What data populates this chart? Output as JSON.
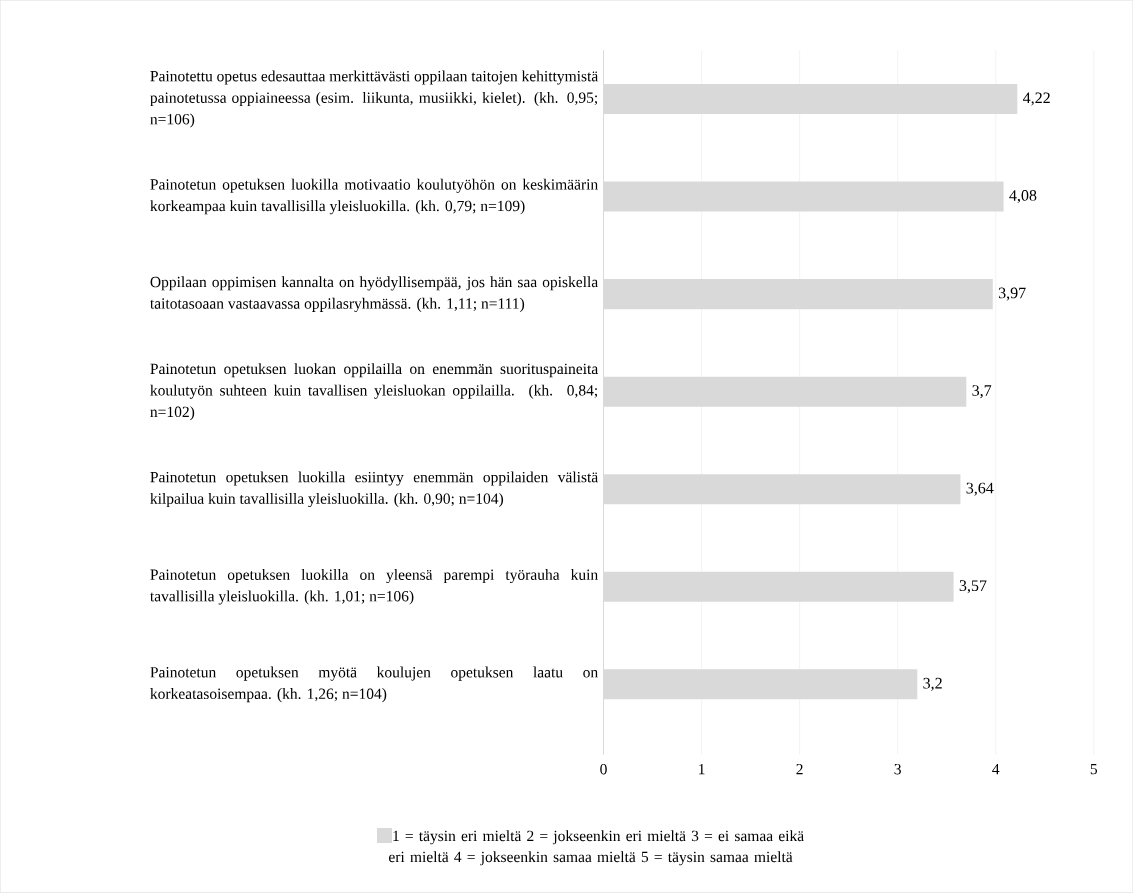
{
  "chart_data": {
    "type": "bar",
    "orientation": "horizontal",
    "categories": [
      "Painotettu opetus edesauttaa merkittävästi oppilaan taitojen kehittymistä painotetussa oppiaineessa (esim. liikunta, musiikki, kielet). (kh. 0,95; n=106)",
      "Painotetun opetuksen luokilla motivaatio koulutyöhön on keskimäärin korkeampaa kuin tavallisilla yleisluokilla. (kh. 0,79; n=109)",
      "Oppilaan oppimisen kannalta on hyödyllisempää, jos hän saa opiskella taitotasoaan vastaavassa oppilasryhmässä. (kh. 1,11; n=111)",
      "Painotetun opetuksen luokan oppilailla on enemmän suorituspaineita koulutyön suhteen kuin tavallisen yleisluokan oppilailla. (kh. 0,84; n=102)",
      "Painotetun opetuksen luokilla esiintyy enemmän oppilaiden välistä kilpailua kuin tavallisilla yleisluokilla. (kh. 0,90; n=104)",
      "Painotetun opetuksen luokilla on yleensä parempi työrauha kuin tavallisilla yleisluokilla. (kh. 1,01; n=106)",
      "Painotetun opetuksen myötä koulujen opetuksen laatu on korkeatasoisempaa. (kh. 1,26; n=104)"
    ],
    "series": [
      {
        "name": "1 = täysin eri mieltä     2 = jokseenkin eri mieltä     3 = ei samaa eikä eri mieltä     4 = jokseenkin samaa mieltä     5 = täysin samaa mieltä",
        "color": "#d9d9d9",
        "values": [
          4.22,
          4.08,
          3.97,
          3.7,
          3.64,
          3.57,
          3.2
        ]
      }
    ],
    "value_labels": [
      "4,22",
      "4,08",
      "3,97",
      "3,7",
      "3,64",
      "3,57",
      "3,2"
    ],
    "xlim": [
      0,
      5
    ],
    "xticks": [
      0,
      1,
      2,
      3,
      4,
      5
    ],
    "grid": "x",
    "legend": "bottom"
  }
}
